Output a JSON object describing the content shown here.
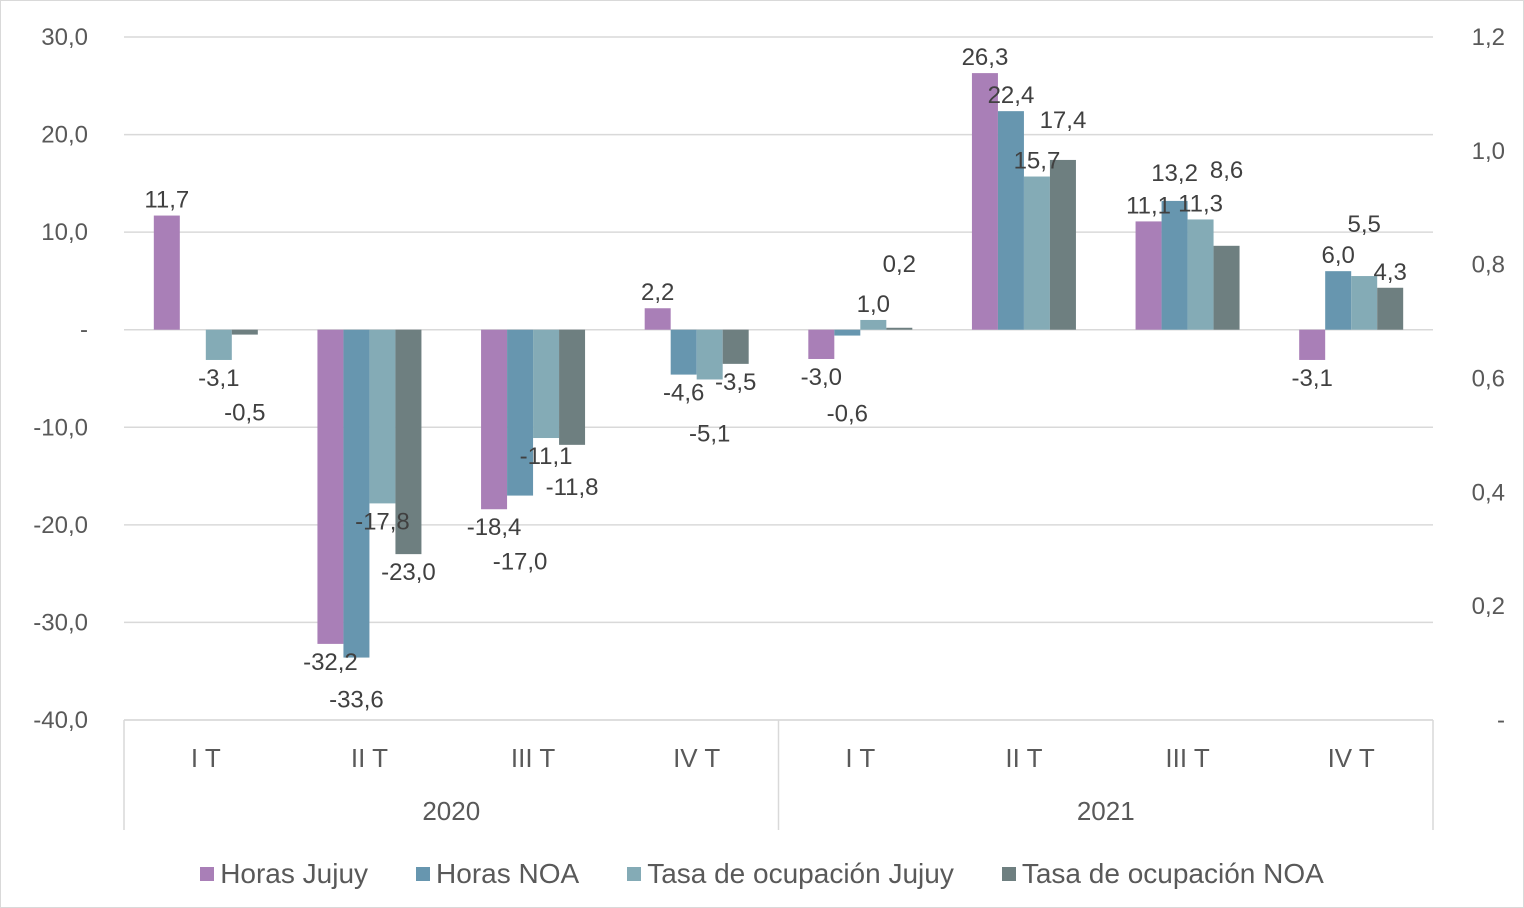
{
  "chart_data": {
    "type": "bar",
    "title": "",
    "xlabel": "",
    "ylabel": "",
    "ylim": [
      -40,
      30
    ],
    "y_ticks": [
      "30,0",
      "20,0",
      "10,0",
      "-",
      "-10,0",
      "-20,0",
      "-30,0",
      "-40,0"
    ],
    "y2lim": [
      0,
      1.2
    ],
    "y2_ticks": [
      "1,2",
      "1,0",
      "0,8",
      "0,6",
      "0,4",
      "0,2",
      "-"
    ],
    "grid": true,
    "legend_position": "bottom",
    "categories": [
      "I T",
      "II T",
      "III T",
      "IV T",
      "I T",
      "II T",
      "III T",
      "IV T"
    ],
    "groups": [
      {
        "label": "2020",
        "span": 4
      },
      {
        "label": "2021",
        "span": 4
      }
    ],
    "series": [
      {
        "name": "Horas Jujuy",
        "color": "#A97FB7",
        "values": [
          11.7,
          -32.2,
          -18.4,
          2.2,
          -3.0,
          26.3,
          11.1,
          -3.1
        ]
      },
      {
        "name": "Horas NOA",
        "color": "#6796AF",
        "values": [
          null,
          -33.6,
          -17.0,
          -4.6,
          -0.6,
          22.4,
          13.2,
          6.0
        ]
      },
      {
        "name": "Tasa de ocupación Jujuy",
        "color": "#84ABB6",
        "values": [
          -3.1,
          -17.8,
          -11.1,
          -5.1,
          1.0,
          15.7,
          11.3,
          5.5
        ]
      },
      {
        "name": "Tasa de ocupación NOA",
        "color": "#6E7F80",
        "values": [
          -0.5,
          -23.0,
          -11.8,
          -3.5,
          0.2,
          17.4,
          8.6,
          4.3
        ]
      }
    ]
  }
}
